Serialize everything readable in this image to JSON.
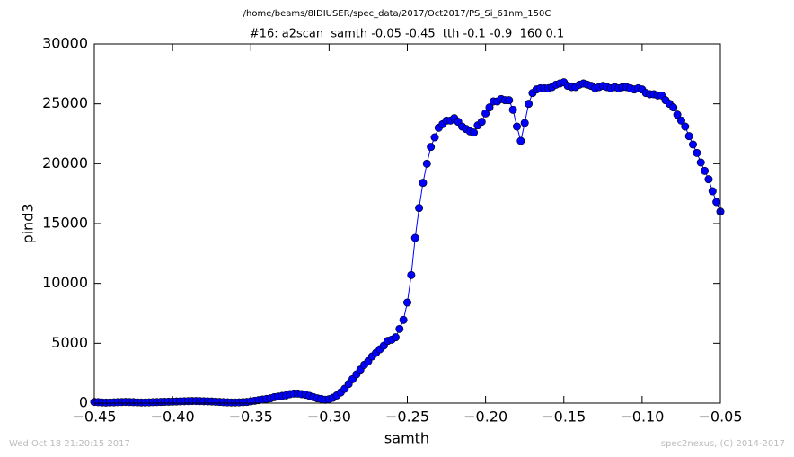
{
  "chart_data": {
    "type": "line",
    "suptitle": "/home/beams/8IDIUSER/spec_data/2017/Oct2017/PS_Si_61nm_150C",
    "title": "#16: a2scan  samth -0.05 -0.45  tth -0.1 -0.9  160 0.1",
    "xlabel": "samth",
    "ylabel": "pind3",
    "footer_left": "Wed Oct 18 21:20:15 2017",
    "footer_right": "spec2nexus, (C) 2014-2017",
    "color": "#0000ff",
    "x": [
      -0.45,
      -0.4475,
      -0.445,
      -0.4425,
      -0.44,
      -0.4375,
      -0.435,
      -0.4325,
      -0.43,
      -0.4275,
      -0.425,
      -0.4225,
      -0.42,
      -0.4175,
      -0.415,
      -0.4125,
      -0.41,
      -0.4075,
      -0.405,
      -0.4025,
      -0.4,
      -0.3975,
      -0.395,
      -0.3925,
      -0.39,
      -0.3875,
      -0.385,
      -0.3825,
      -0.38,
      -0.3775,
      -0.375,
      -0.3725,
      -0.37,
      -0.3675,
      -0.365,
      -0.3625,
      -0.36,
      -0.3575,
      -0.355,
      -0.3525,
      -0.35,
      -0.3475,
      -0.345,
      -0.3425,
      -0.34,
      -0.3375,
      -0.335,
      -0.3325,
      -0.33,
      -0.3275,
      -0.325,
      -0.3225,
      -0.32,
      -0.3175,
      -0.315,
      -0.3125,
      -0.31,
      -0.3075,
      -0.305,
      -0.3025,
      -0.3,
      -0.2975,
      -0.295,
      -0.2925,
      -0.29,
      -0.2875,
      -0.285,
      -0.2825,
      -0.28,
      -0.2775,
      -0.275,
      -0.2725,
      -0.27,
      -0.2675,
      -0.265,
      -0.2625,
      -0.26,
      -0.2575,
      -0.255,
      -0.2525,
      -0.25,
      -0.2475,
      -0.245,
      -0.2425,
      -0.24,
      -0.2375,
      -0.235,
      -0.2325,
      -0.23,
      -0.2275,
      -0.225,
      -0.2225,
      -0.22,
      -0.2175,
      -0.215,
      -0.2125,
      -0.21,
      -0.2075,
      -0.205,
      -0.2025,
      -0.2,
      -0.1975,
      -0.195,
      -0.1925,
      -0.19,
      -0.1875,
      -0.185,
      -0.1825,
      -0.18,
      -0.1775,
      -0.175,
      -0.1725,
      -0.17,
      -0.1675,
      -0.165,
      -0.1625,
      -0.16,
      -0.1575,
      -0.155,
      -0.1525,
      -0.15,
      -0.1475,
      -0.145,
      -0.1425,
      -0.14,
      -0.1375,
      -0.135,
      -0.1325,
      -0.13,
      -0.1275,
      -0.125,
      -0.1225,
      -0.12,
      -0.1175,
      -0.115,
      -0.1125,
      -0.11,
      -0.1075,
      -0.105,
      -0.1025,
      -0.1,
      -0.0975,
      -0.095,
      -0.0925,
      -0.09,
      -0.0875,
      -0.085,
      -0.0825,
      -0.08,
      -0.0775,
      -0.075,
      -0.0725,
      -0.07,
      -0.0675,
      -0.065,
      -0.0625,
      -0.06,
      -0.0575,
      -0.055,
      -0.0525,
      -0.05
    ],
    "values": [
      100,
      80,
      60,
      50,
      60,
      70,
      80,
      90,
      100,
      90,
      80,
      70,
      60,
      60,
      70,
      80,
      90,
      100,
      110,
      120,
      130,
      140,
      150,
      160,
      170,
      180,
      180,
      170,
      160,
      150,
      140,
      120,
      100,
      80,
      70,
      60,
      60,
      70,
      80,
      100,
      150,
      200,
      250,
      300,
      350,
      400,
      500,
      550,
      600,
      650,
      750,
      800,
      800,
      750,
      700,
      600,
      500,
      400,
      350,
      280,
      330,
      450,
      650,
      900,
      1200,
      1600,
      2000,
      2400,
      2800,
      3200,
      3500,
      3900,
      4200,
      4500,
      4800,
      5200,
      5300,
      5500,
      6200,
      6950,
      8400,
      10700,
      13800,
      16300,
      18400,
      20000,
      21400,
      22200,
      23000,
      23300,
      23600,
      23600,
      23800,
      23500,
      23100,
      22900,
      22700,
      22600,
      23200,
      23500,
      24200,
      24700,
      25200,
      25200,
      25400,
      25300,
      25300,
      24500,
      23100,
      21900,
      23400,
      25000,
      25900,
      26200,
      26300,
      26300,
      26300,
      26400,
      26600,
      26700,
      26800,
      26500,
      26400,
      26400,
      26600,
      26700,
      26600,
      26500,
      26300,
      26400,
      26500,
      26400,
      26300,
      26400,
      26300,
      26400,
      26400,
      26300,
      26200,
      26300,
      26200,
      25900,
      25800,
      25800,
      25700,
      25700,
      25300,
      25000,
      24700,
      24100,
      23600,
      23100,
      22300,
      21600,
      20900,
      20100,
      19400,
      18700,
      17700,
      16800,
      16000
    ],
    "xlim": [
      -0.45,
      -0.05
    ],
    "xticks": [
      {
        "value": -0.45,
        "label": "−0.45"
      },
      {
        "value": -0.4,
        "label": "−0.40"
      },
      {
        "value": -0.35,
        "label": "−0.35"
      },
      {
        "value": -0.3,
        "label": "−0.30"
      },
      {
        "value": -0.25,
        "label": "−0.25"
      },
      {
        "value": -0.2,
        "label": "−0.20"
      },
      {
        "value": -0.15,
        "label": "−0.15"
      },
      {
        "value": -0.1,
        "label": "−0.10"
      },
      {
        "value": -0.05,
        "label": "−0.05"
      }
    ],
    "ylim": [
      0,
      30000
    ],
    "yticks": [
      0,
      5000,
      10000,
      15000,
      20000,
      25000,
      30000
    ]
  }
}
